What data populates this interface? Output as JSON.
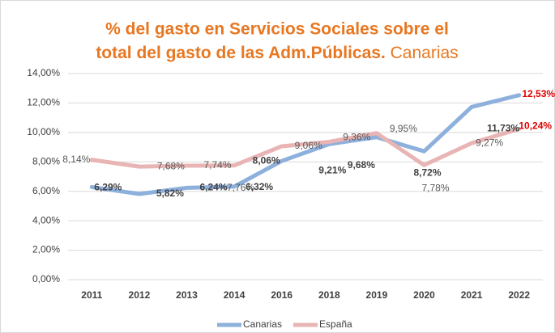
{
  "chart_data": {
    "type": "line",
    "title": [
      "% del gasto en Servicios Sociales sobre el",
      "total del gasto de las Adm.Públicas."
    ],
    "subtitle": "Canarias",
    "title_color": "#e87722",
    "categories": [
      "2011",
      "2012",
      "2013",
      "2014",
      "2016",
      "2018",
      "2019",
      "2020",
      "2021",
      "2022"
    ],
    "series": [
      {
        "name": "Canarias",
        "color": "#8eb0dd",
        "label_color": "#404040",
        "label_weight": "bold",
        "values": [
          6.29,
          5.82,
          6.24,
          6.32,
          8.06,
          9.21,
          9.68,
          8.72,
          11.73,
          12.53
        ],
        "value_labels": [
          "6,29%",
          "5,82%",
          "6,24%",
          "6,32%",
          "8,06%",
          "9,21%",
          "9,68%",
          "8,72%",
          "11,73%",
          "12,53%"
        ]
      },
      {
        "name": "España",
        "color": "#e8b4b4",
        "label_color": "#595959",
        "label_weight": "normal",
        "values": [
          8.14,
          7.68,
          7.74,
          7.76,
          9.06,
          9.36,
          9.95,
          7.78,
          9.27,
          10.24
        ],
        "value_labels": [
          "8,14%",
          "7,68%",
          "7,74%",
          "7,76%",
          "9,06%",
          "9,36%",
          "9,95%",
          "7,78%",
          "9,27%",
          "10,24%"
        ]
      }
    ],
    "highlight_color": "#e00000",
    "ylim": [
      0,
      14
    ],
    "yticks": [
      {
        "value": 0,
        "label": "0,00%"
      },
      {
        "value": 2,
        "label": "2,00%"
      },
      {
        "value": 4,
        "label": "4,00%"
      },
      {
        "value": 6,
        "label": "6,00%"
      },
      {
        "value": 8,
        "label": "8,00%"
      },
      {
        "value": 10,
        "label": "10,00%"
      },
      {
        "value": 12,
        "label": "12,00%"
      },
      {
        "value": 14,
        "label": "14,00%"
      }
    ],
    "grid": true,
    "legend": "bottom"
  }
}
